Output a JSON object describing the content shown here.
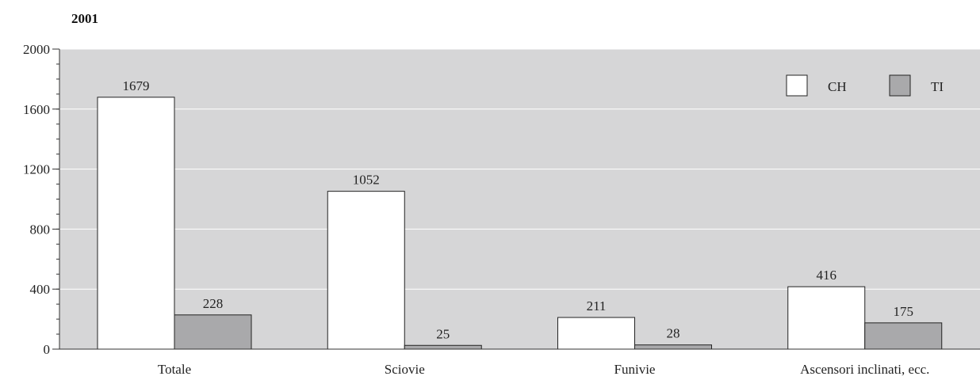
{
  "chart_data": {
    "type": "bar",
    "title": "2001",
    "categories": [
      "Totale",
      "Sciovie",
      "Funivie",
      "Ascensori inclinati, ecc."
    ],
    "series": [
      {
        "name": "CH",
        "values": [
          1679,
          1052,
          211,
          416
        ],
        "color": "#ffffff"
      },
      {
        "name": "TI",
        "values": [
          228,
          25,
          28,
          175
        ],
        "color": "#a9a9ab"
      }
    ],
    "yticks": [
      "0",
      "400",
      "800",
      "1200",
      "1600",
      "2000"
    ],
    "ylim": [
      0,
      2000
    ],
    "grid": true,
    "legend": "top-right",
    "plot_background": "#d6d6d7"
  }
}
